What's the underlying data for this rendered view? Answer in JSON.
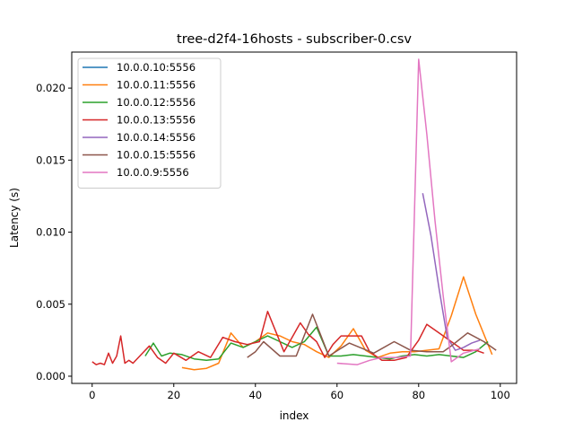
{
  "chart_data": {
    "type": "line",
    "title": "tree-d2f4-16hosts - subscriber-0.csv",
    "xlabel": "index",
    "ylabel": "Latency (s)",
    "xlim": [
      -5,
      104
    ],
    "ylim": [
      -0.0005,
      0.0225
    ],
    "x_ticks": [
      0,
      20,
      40,
      60,
      80,
      100
    ],
    "y_ticks": [
      0.0,
      0.005,
      0.01,
      0.015,
      0.02
    ],
    "y_tick_labels": [
      "0.000",
      "0.005",
      "0.010",
      "0.015",
      "0.020"
    ],
    "grid": false,
    "legend_position": "top-left",
    "series": [
      {
        "name": "10.0.0.10:5556",
        "color": "#1f77b4",
        "points": []
      },
      {
        "name": "10.0.0.11:5556",
        "color": "#ff7f0e",
        "points": [
          [
            22,
            0.0006
          ],
          [
            25,
            0.00045
          ],
          [
            28,
            0.00055
          ],
          [
            31,
            0.0009
          ],
          [
            34,
            0.003
          ],
          [
            37,
            0.002
          ],
          [
            40,
            0.0024
          ],
          [
            43,
            0.003
          ],
          [
            46,
            0.0028
          ],
          [
            49,
            0.0024
          ],
          [
            52,
            0.0022
          ],
          [
            55,
            0.0017
          ],
          [
            58,
            0.0013
          ],
          [
            61,
            0.0021
          ],
          [
            64,
            0.0033
          ],
          [
            67,
            0.0018
          ],
          [
            70,
            0.0013
          ],
          [
            73,
            0.0016
          ],
          [
            76,
            0.0017
          ],
          [
            79,
            0.0017
          ],
          [
            82,
            0.0018
          ],
          [
            85,
            0.0019
          ],
          [
            88,
            0.0042
          ],
          [
            91,
            0.0069
          ],
          [
            94,
            0.0043
          ],
          [
            98,
            0.0015
          ]
        ]
      },
      {
        "name": "10.0.0.12:5556",
        "color": "#2ca02c",
        "points": [
          [
            13,
            0.0014
          ],
          [
            15,
            0.0023
          ],
          [
            17,
            0.0014
          ],
          [
            19,
            0.0016
          ],
          [
            22,
            0.0015
          ],
          [
            25,
            0.0012
          ],
          [
            28,
            0.0011
          ],
          [
            31,
            0.0012
          ],
          [
            34,
            0.0023
          ],
          [
            37,
            0.002
          ],
          [
            40,
            0.0024
          ],
          [
            43,
            0.0028
          ],
          [
            46,
            0.0024
          ],
          [
            49,
            0.002
          ],
          [
            52,
            0.0024
          ],
          [
            55,
            0.0034
          ],
          [
            58,
            0.0014
          ],
          [
            61,
            0.0014
          ],
          [
            64,
            0.0015
          ],
          [
            67,
            0.0014
          ],
          [
            70,
            0.0013
          ],
          [
            73,
            0.0012
          ],
          [
            76,
            0.0014
          ],
          [
            79,
            0.0015
          ],
          [
            82,
            0.0014
          ],
          [
            85,
            0.0015
          ],
          [
            88,
            0.0014
          ],
          [
            91,
            0.0013
          ],
          [
            94,
            0.0017
          ],
          [
            97,
            0.0024
          ]
        ]
      },
      {
        "name": "10.0.0.13:5556",
        "color": "#d62728",
        "points": [
          [
            0,
            0.001
          ],
          [
            1,
            0.0008
          ],
          [
            2,
            0.0009
          ],
          [
            3,
            0.0008
          ],
          [
            4,
            0.0016
          ],
          [
            5,
            0.0009
          ],
          [
            6,
            0.0014
          ],
          [
            7,
            0.0028
          ],
          [
            8,
            0.0009
          ],
          [
            9,
            0.0011
          ],
          [
            10,
            0.0009
          ],
          [
            12,
            0.0015
          ],
          [
            14,
            0.0021
          ],
          [
            16,
            0.0013
          ],
          [
            18,
            0.0009
          ],
          [
            20,
            0.0016
          ],
          [
            23,
            0.0011
          ],
          [
            26,
            0.0017
          ],
          [
            29,
            0.0013
          ],
          [
            32,
            0.0027
          ],
          [
            35,
            0.0024
          ],
          [
            38,
            0.0022
          ],
          [
            41,
            0.0024
          ],
          [
            43,
            0.0045
          ],
          [
            45,
            0.0031
          ],
          [
            47,
            0.0017
          ],
          [
            49,
            0.0027
          ],
          [
            51,
            0.0037
          ],
          [
            53,
            0.0029
          ],
          [
            55,
            0.0024
          ],
          [
            57,
            0.0013
          ],
          [
            59,
            0.0022
          ],
          [
            61,
            0.0028
          ],
          [
            63,
            0.0028
          ],
          [
            66,
            0.0028
          ],
          [
            68,
            0.0017
          ],
          [
            71,
            0.0011
          ],
          [
            74,
            0.0011
          ],
          [
            77,
            0.0013
          ],
          [
            80,
            0.0025
          ],
          [
            82,
            0.0036
          ],
          [
            85,
            0.003
          ],
          [
            88,
            0.0024
          ],
          [
            91,
            0.0018
          ],
          [
            94,
            0.0018
          ],
          [
            96,
            0.0016
          ]
        ]
      },
      {
        "name": "10.0.0.14:5556",
        "color": "#9467bd",
        "points": [
          [
            81,
            0.0127
          ],
          [
            83,
            0.0098
          ],
          [
            85,
            0.0061
          ],
          [
            87,
            0.0027
          ],
          [
            89,
            0.0018
          ],
          [
            91,
            0.002
          ],
          [
            93,
            0.0023
          ],
          [
            95,
            0.0025
          ]
        ]
      },
      {
        "name": "10.0.0.15:5556",
        "color": "#8c564b",
        "points": [
          [
            38,
            0.0013
          ],
          [
            40,
            0.0017
          ],
          [
            42,
            0.0024
          ],
          [
            46,
            0.0014
          ],
          [
            50,
            0.0014
          ],
          [
            54,
            0.0043
          ],
          [
            58,
            0.0014
          ],
          [
            63,
            0.0023
          ],
          [
            69,
            0.0016
          ],
          [
            74,
            0.0024
          ],
          [
            78,
            0.0018
          ],
          [
            82,
            0.0017
          ],
          [
            86,
            0.0017
          ],
          [
            88,
            0.0021
          ],
          [
            92,
            0.003
          ],
          [
            96,
            0.0024
          ],
          [
            99,
            0.0018
          ]
        ]
      },
      {
        "name": "10.0.0.9:5556",
        "color": "#e377c2",
        "points": [
          [
            60,
            0.0009
          ],
          [
            65,
            0.0008
          ],
          [
            68,
            0.0011
          ],
          [
            71,
            0.0013
          ],
          [
            75,
            0.0013
          ],
          [
            78,
            0.0014
          ],
          [
            80,
            0.022
          ],
          [
            82,
            0.0168
          ],
          [
            84,
            0.0108
          ],
          [
            86,
            0.0056
          ],
          [
            88,
            0.001
          ],
          [
            91,
            0.0016
          ],
          [
            95,
            0.0019
          ]
        ]
      }
    ]
  }
}
